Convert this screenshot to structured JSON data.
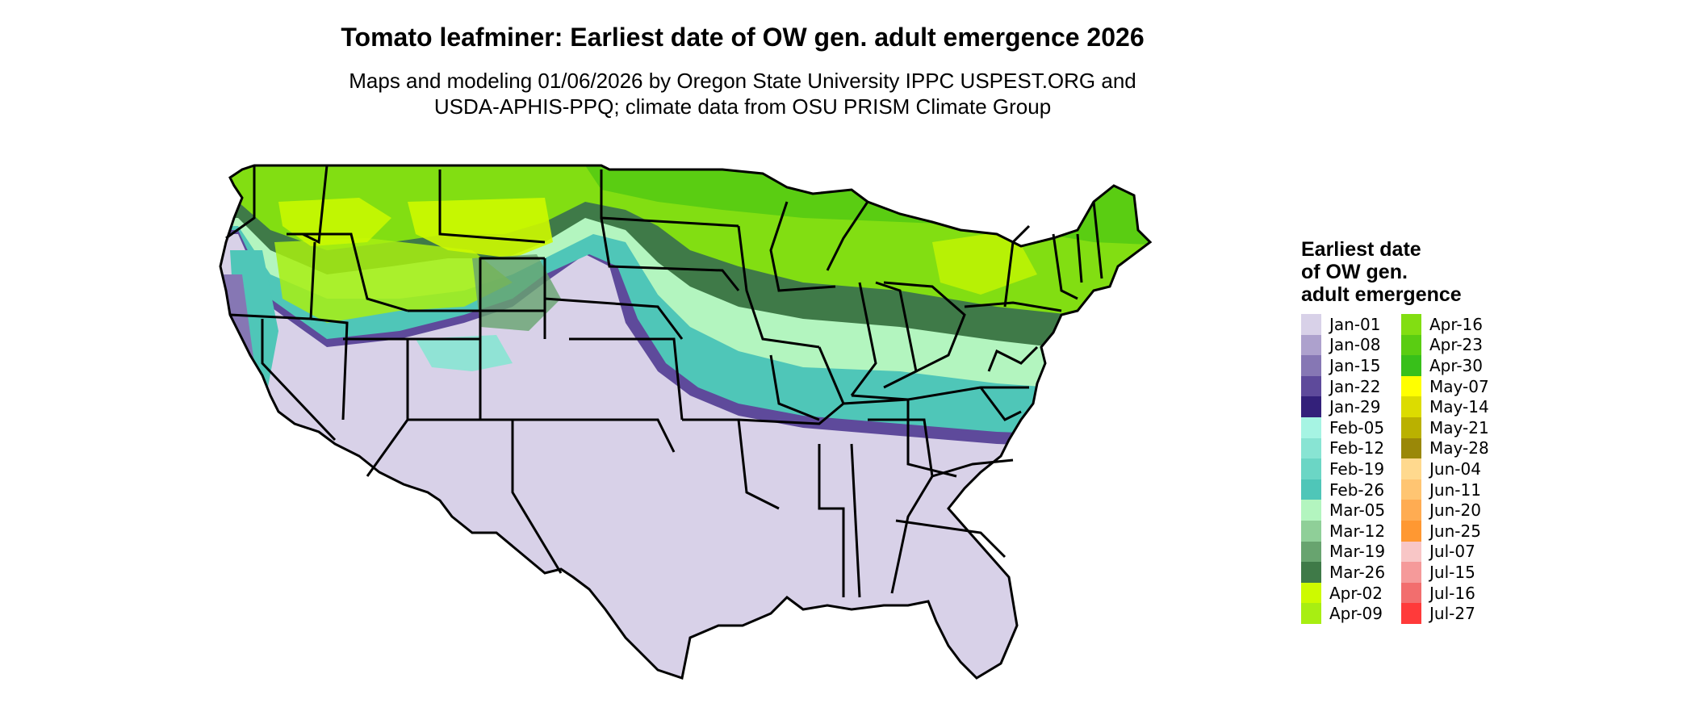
{
  "title": "Tomato leafminer: Earliest date of OW gen. adult emergence 2026",
  "subtitle_lines": [
    "Maps and modeling 01/06/2026 by Oregon State University IPPC USPEST.ORG and",
    "USDA-APHIS-PPQ; climate data from OSU PRISM Climate Group"
  ],
  "legend": {
    "title_lines": [
      "Earliest date",
      "of OW gen.",
      "adult emergence"
    ],
    "columns": [
      [
        {
          "label": "Jan-01",
          "color": "#d8d1e8"
        },
        {
          "label": "Jan-08",
          "color": "#ada1cd"
        },
        {
          "label": "Jan-15",
          "color": "#8677b4"
        },
        {
          "label": "Jan-22",
          "color": "#5e4a9b"
        },
        {
          "label": "Jan-29",
          "color": "#33207a"
        },
        {
          "label": "Feb-05",
          "color": "#a6f4e3"
        },
        {
          "label": "Feb-12",
          "color": "#88e4d3"
        },
        {
          "label": "Feb-19",
          "color": "#6bd6c5"
        },
        {
          "label": "Feb-26",
          "color": "#4fc6b8"
        },
        {
          "label": "Mar-05",
          "color": "#b3f5bf"
        },
        {
          "label": "Mar-12",
          "color": "#8fcf98"
        },
        {
          "label": "Mar-19",
          "color": "#68a46f"
        },
        {
          "label": "Mar-26",
          "color": "#3f7a48"
        },
        {
          "label": "Apr-02",
          "color": "#cdfa00"
        },
        {
          "label": "Apr-09",
          "color": "#a8ee12"
        }
      ],
      [
        {
          "label": "Apr-16",
          "color": "#82de12"
        },
        {
          "label": "Apr-23",
          "color": "#5acd12"
        },
        {
          "label": "Apr-30",
          "color": "#38c01a"
        },
        {
          "label": "May-07",
          "color": "#ffff00"
        },
        {
          "label": "May-14",
          "color": "#dcdc00"
        },
        {
          "label": "May-21",
          "color": "#bab100"
        },
        {
          "label": "May-28",
          "color": "#9a8808"
        },
        {
          "label": "Jun-04",
          "color": "#ffd98e"
        },
        {
          "label": "Jun-11",
          "color": "#ffc572"
        },
        {
          "label": "Jun-20",
          "color": "#ffac52"
        },
        {
          "label": "Jun-25",
          "color": "#ff9832"
        },
        {
          "label": "Jul-07",
          "color": "#f8c6c6"
        },
        {
          "label": "Jul-15",
          "color": "#f59a9a"
        },
        {
          "label": "Jul-16",
          "color": "#f26e6e"
        },
        {
          "label": "Jul-27",
          "color": "#ff3a3a"
        }
      ]
    ]
  },
  "map": {
    "region": "contiguous-united-states",
    "colors": {
      "south": "#d8d1e8",
      "purple_band": "#5e4a9b",
      "teal_band": "#4fc6b8",
      "light_green_band": "#b3f5bf",
      "dark_green_band": "#3f7a48",
      "north_green": "#82de12",
      "far_north": "#5acd12",
      "mountain_yellow_green": "#cdfa00",
      "state_border": "#000000"
    }
  }
}
